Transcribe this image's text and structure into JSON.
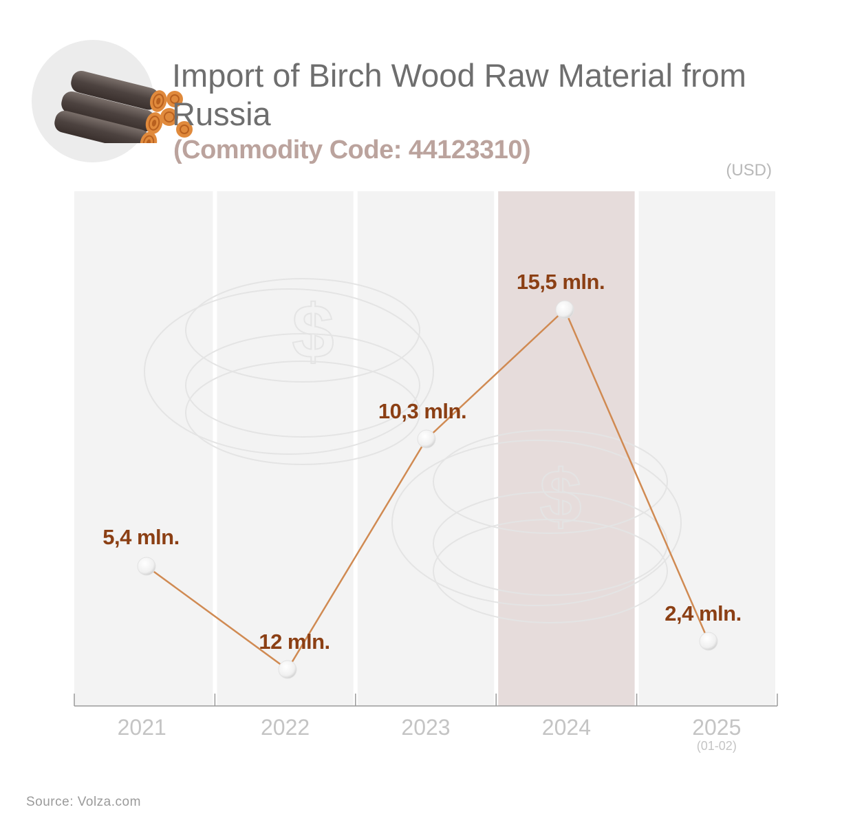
{
  "header": {
    "title": "Import of Birch Wood Raw Material from Russia",
    "subtitle": "(Commodity Code: 44123310)",
    "unit": "(USD)",
    "icon": "wood-logs-icon"
  },
  "footer": {
    "source": "Source:  Volza.com"
  },
  "colors": {
    "line": "#d08a52",
    "label": "#8b3f14",
    "column": "#f3f3f3",
    "highlight_column": "#e6dcdb",
    "tick_label": "#c4c4c4",
    "title": "#6e6e6e",
    "subtitle": "#bba39d"
  },
  "chart_data": {
    "type": "line",
    "categories": [
      "2021",
      "2022",
      "2023",
      "2024",
      "2025"
    ],
    "category_sublabels": [
      "",
      "",
      "",
      "",
      "(01-02)"
    ],
    "highlight_category": "2024",
    "ylabel": "(USD)",
    "series": [
      {
        "values": [
          5.4,
          12,
          10.3,
          15.5,
          2.4
        ],
        "labels": [
          "5,4 mln.",
          "12 mln.",
          "10,3 mln.",
          "15,5 mln.",
          "2,4 mln."
        ]
      }
    ],
    "grid": false,
    "legend": "none"
  }
}
